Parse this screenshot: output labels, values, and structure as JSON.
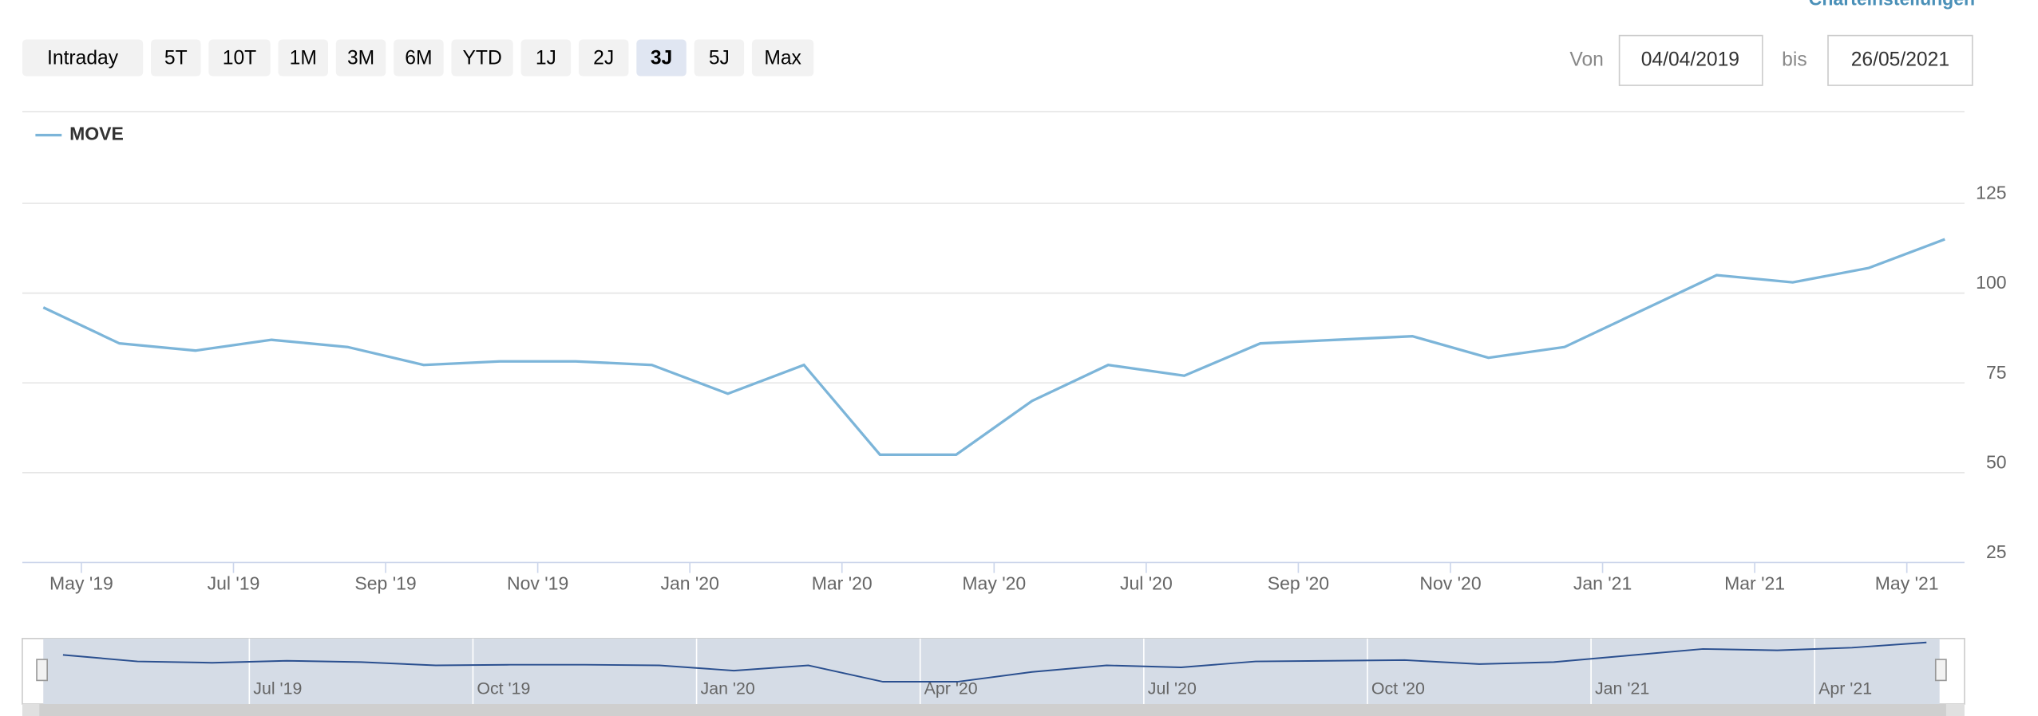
{
  "header": {
    "settings_link": "Charteinstellungen",
    "from_label": "Von",
    "from_date": "04/04/2019",
    "to_label": "bis",
    "to_date": "26/05/2021"
  },
  "buttons": [
    "Intraday",
    "5T",
    "10T",
    "1M",
    "3M",
    "6M",
    "YTD",
    "1J",
    "2J",
    "3J",
    "5J",
    "Max"
  ],
  "active_button": "3J",
  "chart_data": {
    "type": "line",
    "x": [
      "2019-04",
      "2019-05",
      "2019-06",
      "2019-07",
      "2019-08",
      "2019-09",
      "2019-10",
      "2019-11",
      "2019-12",
      "2020-01",
      "2020-02",
      "2020-03",
      "2020-04",
      "2020-05",
      "2020-06",
      "2020-07",
      "2020-08",
      "2020-09",
      "2020-10",
      "2020-11",
      "2020-12",
      "2021-01",
      "2021-02",
      "2021-03",
      "2021-04",
      "2021-05"
    ],
    "series": [
      {
        "name": "MOVE",
        "color": "#7cb5d9",
        "values": [
          96,
          86,
          84,
          87,
          85,
          80,
          81,
          81,
          80,
          72,
          80,
          55,
          55,
          70,
          80,
          77,
          86,
          87,
          88,
          82,
          85,
          95,
          105,
          103,
          107,
          115
        ]
      }
    ],
    "ylim": [
      25,
      125
    ],
    "yticks": [
      25,
      50,
      75,
      100,
      125
    ],
    "grid": true,
    "xticks": [
      {
        "value": "2019-05",
        "label": "May '19"
      },
      {
        "value": "2019-07",
        "label": "Jul '19"
      },
      {
        "value": "2019-09",
        "label": "Sep '19"
      },
      {
        "value": "2019-11",
        "label": "Nov '19"
      },
      {
        "value": "2020-01",
        "label": "Jan '20"
      },
      {
        "value": "2020-03",
        "label": "Mar '20"
      },
      {
        "value": "2020-05",
        "label": "May '20"
      },
      {
        "value": "2020-07",
        "label": "Jul '20"
      },
      {
        "value": "2020-09",
        "label": "Sep '20"
      },
      {
        "value": "2020-11",
        "label": "Nov '20"
      },
      {
        "value": "2021-01",
        "label": "Jan '21"
      },
      {
        "value": "2021-03",
        "label": "Mar '21"
      },
      {
        "value": "2021-05",
        "label": "May '21"
      }
    ],
    "navigator_ticks": [
      {
        "value": "2019-07",
        "label": "Jul '19"
      },
      {
        "value": "2019-10",
        "label": "Oct '19"
      },
      {
        "value": "2020-01",
        "label": "Jan '20"
      },
      {
        "value": "2020-04",
        "label": "Apr '20"
      },
      {
        "value": "2020-07",
        "label": "Jul '20"
      },
      {
        "value": "2020-10",
        "label": "Oct '20"
      },
      {
        "value": "2021-01",
        "label": "Jan '21"
      },
      {
        "value": "2021-04",
        "label": "Apr '21"
      }
    ],
    "navigator_color": "#2a4f8f"
  }
}
